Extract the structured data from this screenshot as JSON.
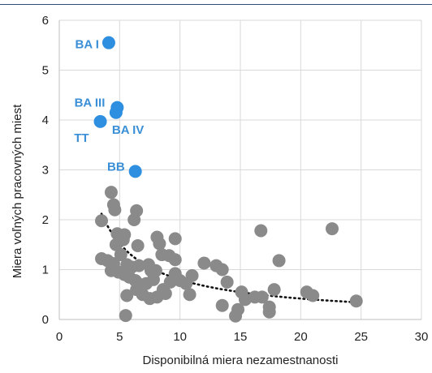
{
  "chart_data": {
    "type": "scatter",
    "title": "",
    "xlabel": "Disponibilná miera nezamestnanosti",
    "ylabel": "Miera voľných pracovných miest",
    "xlim": [
      0,
      30
    ],
    "ylim": [
      0,
      6
    ],
    "xticks": [
      "0",
      "5",
      "10",
      "15",
      "20",
      "25",
      "30"
    ],
    "yticks": [
      "0",
      "1",
      "2",
      "3",
      "4",
      "5",
      "6"
    ],
    "grid": true,
    "legend": "none",
    "colors": {
      "highlight": "#2e8fe0",
      "regular": "#8a8a8a",
      "trend": "#111111",
      "grid": "#d9d9d9",
      "annotation": "#3a8fd6"
    },
    "series": [
      {
        "points": [
          {
            "x": 4.1,
            "y": 5.55,
            "label": "BA I"
          },
          {
            "x": 4.8,
            "y": 4.25,
            "label": "BA III"
          },
          {
            "x": 4.7,
            "y": 4.15,
            "label": "BA IV"
          },
          {
            "x": 3.4,
            "y": 3.97,
            "label": "TT"
          },
          {
            "x": 6.3,
            "y": 2.97,
            "label": "BB"
          }
        ]
      },
      {
        "points": [
          {
            "x": 3.5,
            "y": 1.98
          },
          {
            "x": 4.3,
            "y": 2.55
          },
          {
            "x": 4.5,
            "y": 2.3
          },
          {
            "x": 4.6,
            "y": 2.2
          },
          {
            "x": 6.4,
            "y": 2.18
          },
          {
            "x": 6.2,
            "y": 2.0
          },
          {
            "x": 4.8,
            "y": 1.72
          },
          {
            "x": 5.4,
            "y": 1.7
          },
          {
            "x": 5.3,
            "y": 1.6
          },
          {
            "x": 4.7,
            "y": 1.5
          },
          {
            "x": 6.5,
            "y": 1.48
          },
          {
            "x": 8.1,
            "y": 1.65
          },
          {
            "x": 8.3,
            "y": 1.52
          },
          {
            "x": 9.6,
            "y": 1.62
          },
          {
            "x": 8.5,
            "y": 1.3
          },
          {
            "x": 9.1,
            "y": 1.28
          },
          {
            "x": 9.6,
            "y": 1.2
          },
          {
            "x": 5.1,
            "y": 1.3
          },
          {
            "x": 3.5,
            "y": 1.22
          },
          {
            "x": 4.0,
            "y": 1.18
          },
          {
            "x": 4.5,
            "y": 1.12
          },
          {
            "x": 5.6,
            "y": 1.1
          },
          {
            "x": 6.0,
            "y": 1.05
          },
          {
            "x": 6.6,
            "y": 1.08
          },
          {
            "x": 7.4,
            "y": 1.1
          },
          {
            "x": 7.6,
            "y": 0.98
          },
          {
            "x": 8.0,
            "y": 0.98
          },
          {
            "x": 4.3,
            "y": 0.98
          },
          {
            "x": 4.9,
            "y": 0.95
          },
          {
            "x": 5.4,
            "y": 0.9
          },
          {
            "x": 5.8,
            "y": 0.85
          },
          {
            "x": 6.3,
            "y": 0.78
          },
          {
            "x": 6.7,
            "y": 0.7
          },
          {
            "x": 7.2,
            "y": 0.72
          },
          {
            "x": 7.8,
            "y": 0.8
          },
          {
            "x": 8.6,
            "y": 0.6
          },
          {
            "x": 9.2,
            "y": 0.75
          },
          {
            "x": 9.6,
            "y": 0.92
          },
          {
            "x": 10.0,
            "y": 0.78
          },
          {
            "x": 10.5,
            "y": 0.72
          },
          {
            "x": 11.0,
            "y": 0.88
          },
          {
            "x": 10.8,
            "y": 0.5
          },
          {
            "x": 6.4,
            "y": 0.6
          },
          {
            "x": 6.9,
            "y": 0.5
          },
          {
            "x": 7.5,
            "y": 0.42
          },
          {
            "x": 8.1,
            "y": 0.45
          },
          {
            "x": 8.8,
            "y": 0.52
          },
          {
            "x": 5.6,
            "y": 0.48
          },
          {
            "x": 5.5,
            "y": 0.08
          },
          {
            "x": 12.0,
            "y": 1.13
          },
          {
            "x": 13.0,
            "y": 1.08
          },
          {
            "x": 13.5,
            "y": 1.0
          },
          {
            "x": 13.9,
            "y": 0.75
          },
          {
            "x": 13.5,
            "y": 0.28
          },
          {
            "x": 14.6,
            "y": 0.07
          },
          {
            "x": 14.8,
            "y": 0.2
          },
          {
            "x": 15.1,
            "y": 0.55
          },
          {
            "x": 15.4,
            "y": 0.4
          },
          {
            "x": 16.2,
            "y": 0.45
          },
          {
            "x": 16.8,
            "y": 0.45
          },
          {
            "x": 16.7,
            "y": 1.78
          },
          {
            "x": 17.4,
            "y": 0.25
          },
          {
            "x": 17.4,
            "y": 0.15
          },
          {
            "x": 17.8,
            "y": 0.6
          },
          {
            "x": 18.2,
            "y": 1.18
          },
          {
            "x": 20.5,
            "y": 0.55
          },
          {
            "x": 21.0,
            "y": 0.48
          },
          {
            "x": 22.6,
            "y": 1.82
          },
          {
            "x": 24.6,
            "y": 0.37
          }
        ]
      }
    ],
    "trendline": {
      "type": "power",
      "coef": 6.8,
      "exponent": -0.93,
      "x_start": 3.5,
      "x_end": 24.6
    }
  }
}
